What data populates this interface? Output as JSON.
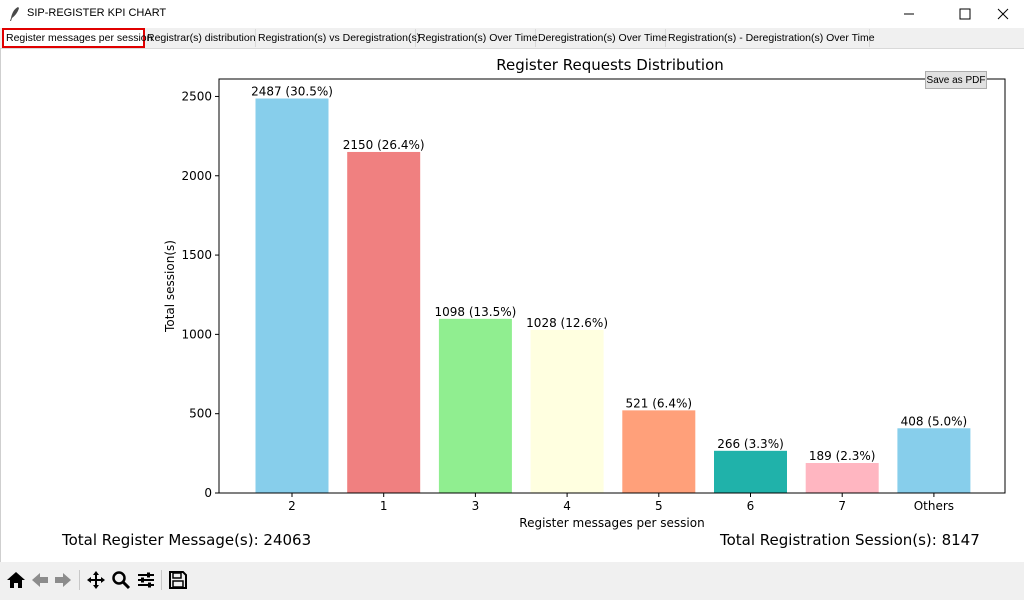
{
  "window": {
    "title": "SIP-REGISTER KPI CHART"
  },
  "tabs": [
    {
      "label": "Register messages per session",
      "active": true
    },
    {
      "label": "Registrar(s) distribution"
    },
    {
      "label": "Registration(s) vs Deregistration(s)"
    },
    {
      "label": "Registration(s) Over Time"
    },
    {
      "label": "Deregistration(s) Over Time"
    },
    {
      "label": "Registration(s) - Deregistration(s) Over Time"
    }
  ],
  "save_button": "Save as PDF",
  "chart_data": {
    "type": "bar",
    "title": "Register Requests Distribution",
    "xlabel": "Register messages per session",
    "ylabel": "Total session(s)",
    "categories": [
      "2",
      "1",
      "3",
      "4",
      "5",
      "6",
      "7",
      "Others"
    ],
    "values": [
      2487,
      2150,
      1098,
      1028,
      521,
      266,
      189,
      408
    ],
    "bar_labels": [
      "2487 (30.5%)",
      "2150 (26.4%)",
      "1098 (13.5%)",
      "1028 (12.6%)",
      "521 (6.4%)",
      "266 (3.3%)",
      "189 (2.3%)",
      "408 (5.0%)"
    ],
    "colors": [
      "#87ceeb",
      "#f08080",
      "#90ee90",
      "#ffffe0",
      "#ffa07a",
      "#20b2aa",
      "#ffb6c1",
      "#87ceeb"
    ],
    "yticks": [
      0,
      500,
      1000,
      1500,
      2000,
      2500
    ],
    "ylim": [
      0,
      2610
    ],
    "grid": false
  },
  "totals": {
    "messages": "Total Register Message(s): 24063",
    "sessions": "Total Registration Session(s): 8147"
  },
  "toolbar": [
    "home-icon",
    "back-icon",
    "forward-icon",
    "pan-icon",
    "zoom-icon",
    "configure-subplots-icon",
    "save-icon"
  ]
}
